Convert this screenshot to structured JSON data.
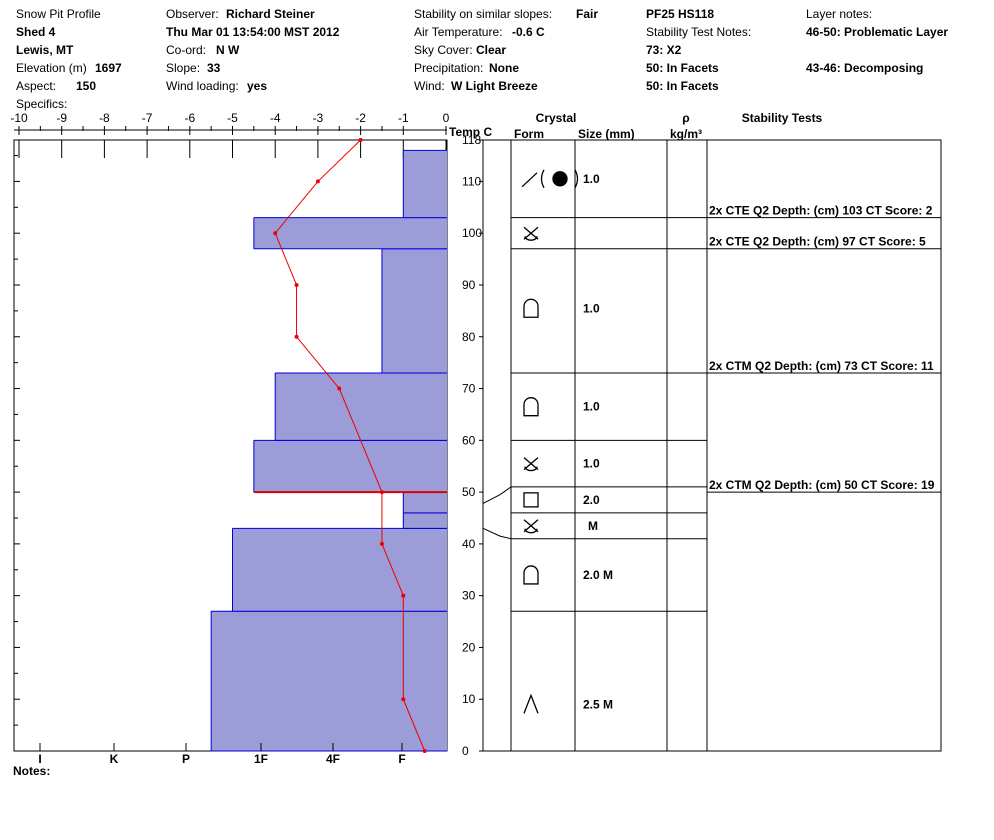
{
  "header": {
    "col1": {
      "title": "Snow Pit Profile",
      "location": "Shed 4",
      "region": "Lewis, MT",
      "elevation_label": "Elevation (m)",
      "elevation_value": "1697",
      "aspect_label": "Aspect:",
      "aspect_value": "150",
      "specifics_label": "Specifics:"
    },
    "col2": {
      "observer_label": "Observer:",
      "observer_value": "Richard Steiner",
      "datetime": "Thu Mar 01 13:54:00 MST 2012",
      "coord_label": "Co-ord:",
      "coord_value": "N  W",
      "slope_label": "Slope:",
      "slope_value": "33",
      "wind_loading_label": "Wind loading:",
      "wind_loading_value": "yes"
    },
    "col3": {
      "stability_label": "Stability on similar slopes:",
      "stability_value": "Fair",
      "air_temp_label": "Air Temperature:",
      "air_temp_value": "-0.6 C",
      "sky_label": "Sky Cover:",
      "sky_value": "Clear",
      "precip_label": "Precipitation:",
      "precip_value": "None",
      "wind_label": "Wind:",
      "wind_value": "W Light Breeze"
    },
    "col4": {
      "pit_id": "PF25 HS118",
      "stability_notes_label": "Stability Test Notes:",
      "note1": "73: X2",
      "note2": "50: In Facets",
      "note3": "50: In Facets"
    },
    "col5": {
      "layer_notes_label": "Layer notes:",
      "note1": "46-50: Problematic Layer",
      "note2": "43-46: Decomposing"
    }
  },
  "notes_label": "Notes:",
  "table_headers": {
    "temp": "Temp C",
    "crystal": "Crystal",
    "form": "Form",
    "size": "Size (mm)",
    "rho": "ρ",
    "rho_unit": "kg/m³",
    "stability": "Stability Tests"
  },
  "chart_data": {
    "type": "line",
    "temp_axis": {
      "ticks": [
        -10,
        -9,
        -8,
        -7,
        -6,
        -5,
        -4,
        -3,
        -2,
        -1,
        0
      ],
      "range": [
        -10,
        0
      ]
    },
    "height_axis": {
      "ticks": [
        0,
        10,
        20,
        30,
        40,
        50,
        60,
        70,
        80,
        90,
        100,
        110,
        118
      ],
      "range": [
        0,
        118
      ]
    },
    "hardness_axis": {
      "labels": [
        "I",
        "K",
        "P",
        "1F",
        "4F",
        "F"
      ]
    },
    "temperature_profile": [
      {
        "height": 0,
        "temp": -0.5
      },
      {
        "height": 10,
        "temp": -1.0
      },
      {
        "height": 30,
        "temp": -1.0
      },
      {
        "height": 40,
        "temp": -1.5
      },
      {
        "height": 50,
        "temp": -1.5
      },
      {
        "height": 70,
        "temp": -2.5
      },
      {
        "height": 80,
        "temp": -3.5
      },
      {
        "height": 90,
        "temp": -3.5
      },
      {
        "height": 100,
        "temp": -4.0
      },
      {
        "height": 110,
        "temp": -3.0
      },
      {
        "height": 118,
        "temp": -2.0
      }
    ],
    "hardness_layers": [
      {
        "bottom": 0,
        "top": 27,
        "hardness": -5.5
      },
      {
        "bottom": 27,
        "top": 43,
        "hardness": -5.0
      },
      {
        "bottom": 43,
        "top": 46,
        "hardness": -1.0
      },
      {
        "bottom": 46,
        "top": 50,
        "hardness": -1.0
      },
      {
        "bottom": 50,
        "top": 60,
        "hardness": -4.5
      },
      {
        "bottom": 60,
        "top": 73,
        "hardness": -4.0
      },
      {
        "bottom": 73,
        "top": 97,
        "hardness": -1.5
      },
      {
        "bottom": 97,
        "top": 103,
        "hardness": -4.5
      },
      {
        "bottom": 103,
        "top": 116,
        "hardness": -1.0
      }
    ],
    "problem_layer_height": 50,
    "layer_boundaries": [
      27,
      41,
      46,
      51,
      60,
      73,
      97,
      103
    ],
    "crystal_rows": [
      {
        "height": 9,
        "form": "rounds",
        "size": "2.5 M"
      },
      {
        "height": 34,
        "form": "depth-hoar",
        "size": "2.0 M"
      },
      {
        "height": 43.5,
        "form": "decomp-facets",
        "size": "M"
      },
      {
        "height": 48.5,
        "form": "facets",
        "size": "2.0"
      },
      {
        "height": 55.5,
        "form": "decomp-facets",
        "size": "1.0"
      },
      {
        "height": 66.5,
        "form": "depth-hoar",
        "size": "1.0"
      },
      {
        "height": 85.5,
        "form": "depth-hoar",
        "size": "1.0"
      },
      {
        "height": 100,
        "form": "decomp-facets",
        "size": ""
      },
      {
        "height": 110.5,
        "form": "graupel",
        "size": "1.0"
      }
    ],
    "stability_tests": [
      {
        "height": 103,
        "text": "2x CTE Q2 Depth: (cm) 103 CT Score: 2"
      },
      {
        "height": 97,
        "text": "2x CTE Q2 Depth: (cm) 97 CT Score: 5"
      },
      {
        "height": 73,
        "text": "2x CTM Q2 Depth: (cm) 73 CT Score: 11"
      },
      {
        "height": 50,
        "text": "2x CTM Q2 Depth: (cm) 50 CT Score: 19"
      }
    ]
  },
  "colors": {
    "hardness_fill": "#9c9cd8",
    "hardness_edge": "#0000dd",
    "temp_line": "#ee0000",
    "problem_layer": "#dd0000"
  }
}
